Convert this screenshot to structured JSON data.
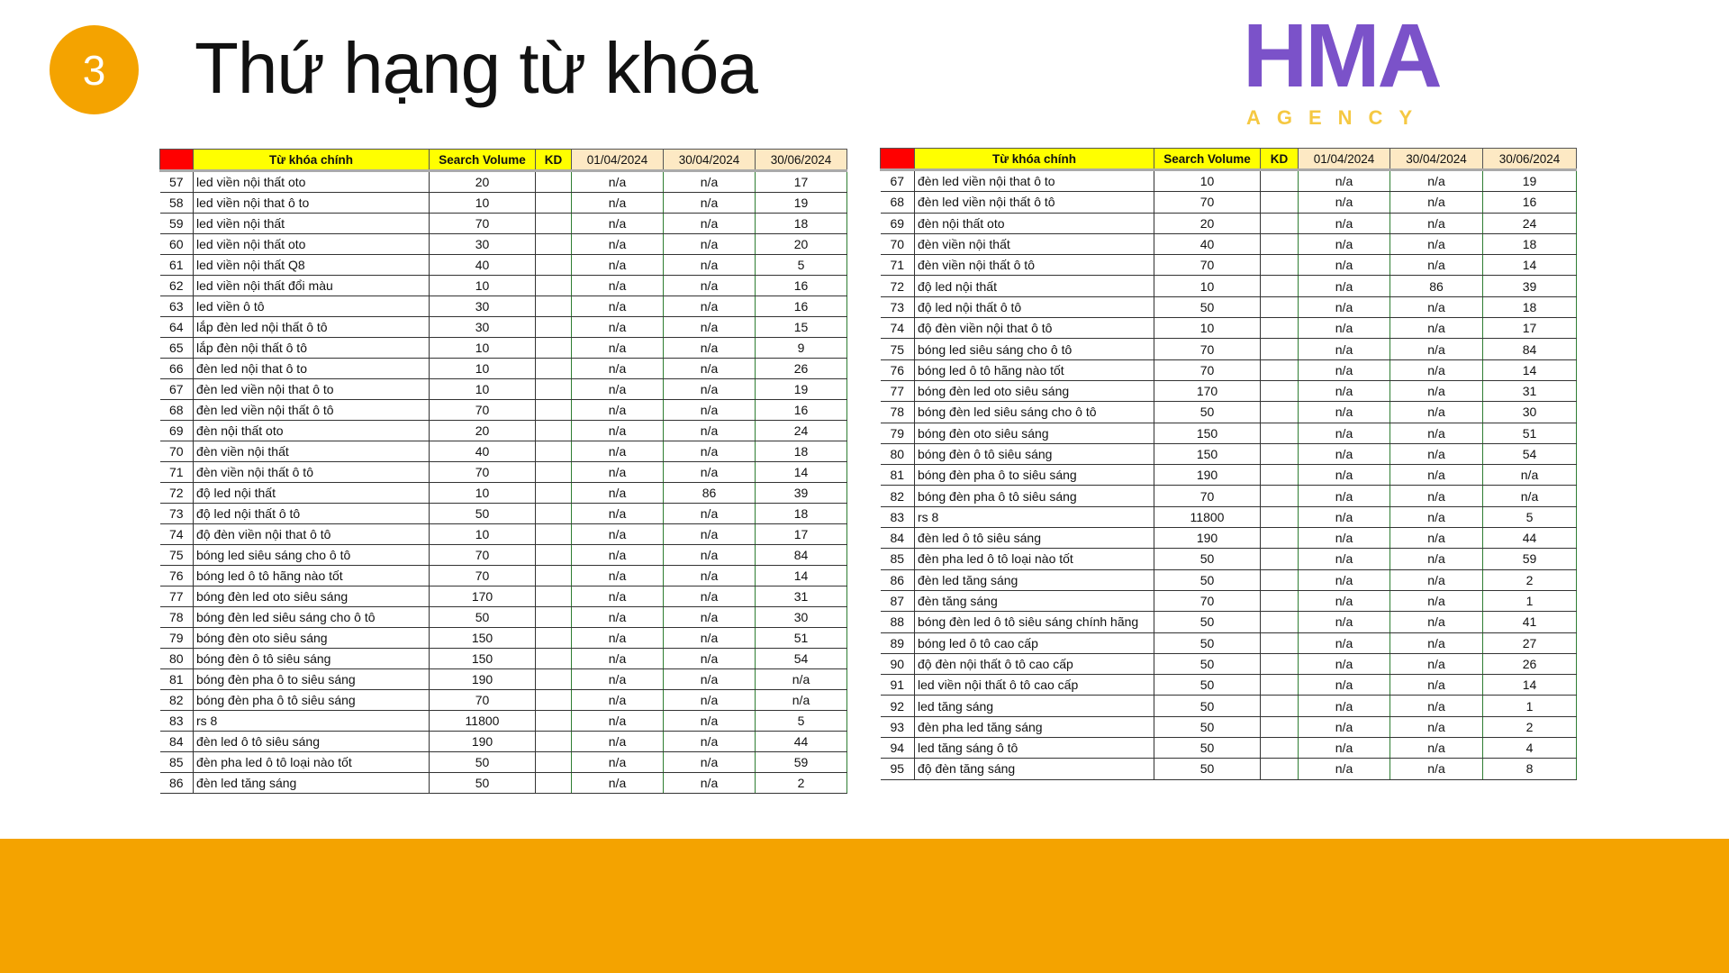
{
  "slide": {
    "number": "3",
    "title": "Thứ hạng từ khóa"
  },
  "watermark": {
    "text": "HMA",
    "subtext": "AGENCY"
  },
  "colors": {
    "accent": "#F4A300",
    "header_red": "#ff0000",
    "header_yellow": "#ffff00",
    "watermark": "#7b52c9"
  },
  "columns": [
    "",
    "Từ khóa chính",
    "Search Volume",
    "KD",
    "01/04/2024",
    "30/04/2024",
    "30/06/2024"
  ],
  "left_table": [
    [
      "57",
      "led viền nội thất oto",
      "20",
      "",
      "n/a",
      "n/a",
      "17"
    ],
    [
      "58",
      "led viền nội that ô to",
      "10",
      "",
      "n/a",
      "n/a",
      "19"
    ],
    [
      "59",
      "led viền nội thất",
      "70",
      "",
      "n/a",
      "n/a",
      "18"
    ],
    [
      "60",
      "led viền nội thất oto",
      "30",
      "",
      "n/a",
      "n/a",
      "20"
    ],
    [
      "61",
      "led viền nội thất Q8",
      "40",
      "",
      "n/a",
      "n/a",
      "5"
    ],
    [
      "62",
      "led viền nội thất đổi màu",
      "10",
      "",
      "n/a",
      "n/a",
      "16"
    ],
    [
      "63",
      "led viền ô tô",
      "30",
      "",
      "n/a",
      "n/a",
      "16"
    ],
    [
      "64",
      "lắp đèn led nội thất ô tô",
      "30",
      "",
      "n/a",
      "n/a",
      "15"
    ],
    [
      "65",
      "lắp đèn nội thất ô tô",
      "10",
      "",
      "n/a",
      "n/a",
      "9"
    ],
    [
      "66",
      "đèn led nội that ô to",
      "10",
      "",
      "n/a",
      "n/a",
      "26"
    ],
    [
      "67",
      "đèn led viền nội that ô to",
      "10",
      "",
      "n/a",
      "n/a",
      "19"
    ],
    [
      "68",
      "đèn led viền nội thất ô tô",
      "70",
      "",
      "n/a",
      "n/a",
      "16"
    ],
    [
      "69",
      "đèn nội thất oto",
      "20",
      "",
      "n/a",
      "n/a",
      "24"
    ],
    [
      "70",
      "đèn viền nội thất",
      "40",
      "",
      "n/a",
      "n/a",
      "18"
    ],
    [
      "71",
      "đèn viền nội thất ô tô",
      "70",
      "",
      "n/a",
      "n/a",
      "14"
    ],
    [
      "72",
      "độ led nội thất",
      "10",
      "",
      "n/a",
      "86",
      "39"
    ],
    [
      "73",
      "độ led nội thất ô tô",
      "50",
      "",
      "n/a",
      "n/a",
      "18"
    ],
    [
      "74",
      "độ đèn viền nội that ô tô",
      "10",
      "",
      "n/a",
      "n/a",
      "17"
    ],
    [
      "75",
      "bóng led siêu sáng cho ô tô",
      "70",
      "",
      "n/a",
      "n/a",
      "84"
    ],
    [
      "76",
      "bóng led ô tô hãng nào tốt",
      "70",
      "",
      "n/a",
      "n/a",
      "14"
    ],
    [
      "77",
      "bóng đèn led oto siêu sáng",
      "170",
      "",
      "n/a",
      "n/a",
      "31"
    ],
    [
      "78",
      "bóng đèn led siêu sáng cho ô tô",
      "50",
      "",
      "n/a",
      "n/a",
      "30"
    ],
    [
      "79",
      "bóng đèn oto siêu sáng",
      "150",
      "",
      "n/a",
      "n/a",
      "51"
    ],
    [
      "80",
      "bóng đèn ô tô siêu sáng",
      "150",
      "",
      "n/a",
      "n/a",
      "54"
    ],
    [
      "81",
      "bóng đèn pha ô to siêu sáng",
      "190",
      "",
      "n/a",
      "n/a",
      "n/a"
    ],
    [
      "82",
      "bóng đèn pha ô tô siêu sáng",
      "70",
      "",
      "n/a",
      "n/a",
      "n/a"
    ],
    [
      "83",
      "rs 8",
      "11800",
      "",
      "n/a",
      "n/a",
      "5"
    ],
    [
      "84",
      "đèn led ô tô siêu sáng",
      "190",
      "",
      "n/a",
      "n/a",
      "44"
    ],
    [
      "85",
      "đèn pha led ô tô loại nào tốt",
      "50",
      "",
      "n/a",
      "n/a",
      "59"
    ],
    [
      "86",
      "đèn led tăng sáng",
      "50",
      "",
      "n/a",
      "n/a",
      "2"
    ]
  ],
  "right_table": [
    [
      "67",
      "đèn led viền nội that ô to",
      "10",
      "",
      "n/a",
      "n/a",
      "19"
    ],
    [
      "68",
      "đèn led viền nội thất ô tô",
      "70",
      "",
      "n/a",
      "n/a",
      "16"
    ],
    [
      "69",
      "đèn nội thất oto",
      "20",
      "",
      "n/a",
      "n/a",
      "24"
    ],
    [
      "70",
      "đèn viền nội thất",
      "40",
      "",
      "n/a",
      "n/a",
      "18"
    ],
    [
      "71",
      "đèn viền nội thất ô tô",
      "70",
      "",
      "n/a",
      "n/a",
      "14"
    ],
    [
      "72",
      "độ led nội thất",
      "10",
      "",
      "n/a",
      "86",
      "39"
    ],
    [
      "73",
      "độ led nội thất ô tô",
      "50",
      "",
      "n/a",
      "n/a",
      "18"
    ],
    [
      "74",
      "độ đèn viền nội that ô tô",
      "10",
      "",
      "n/a",
      "n/a",
      "17"
    ],
    [
      "75",
      "bóng led siêu sáng cho ô tô",
      "70",
      "",
      "n/a",
      "n/a",
      "84"
    ],
    [
      "76",
      "bóng led ô tô hãng nào tốt",
      "70",
      "",
      "n/a",
      "n/a",
      "14"
    ],
    [
      "77",
      "bóng đèn led oto siêu sáng",
      "170",
      "",
      "n/a",
      "n/a",
      "31"
    ],
    [
      "78",
      "bóng đèn led siêu sáng cho ô tô",
      "50",
      "",
      "n/a",
      "n/a",
      "30"
    ],
    [
      "79",
      "bóng đèn oto siêu sáng",
      "150",
      "",
      "n/a",
      "n/a",
      "51"
    ],
    [
      "80",
      "bóng đèn ô tô siêu sáng",
      "150",
      "",
      "n/a",
      "n/a",
      "54"
    ],
    [
      "81",
      "bóng đèn pha ô to siêu sáng",
      "190",
      "",
      "n/a",
      "n/a",
      "n/a"
    ],
    [
      "82",
      "bóng đèn pha ô tô siêu sáng",
      "70",
      "",
      "n/a",
      "n/a",
      "n/a"
    ],
    [
      "83",
      "rs 8",
      "11800",
      "",
      "n/a",
      "n/a",
      "5"
    ],
    [
      "84",
      "đèn led ô tô siêu sáng",
      "190",
      "",
      "n/a",
      "n/a",
      "44"
    ],
    [
      "85",
      "đèn pha led ô tô loại nào tốt",
      "50",
      "",
      "n/a",
      "n/a",
      "59"
    ],
    [
      "86",
      "đèn led tăng sáng",
      "50",
      "",
      "n/a",
      "n/a",
      "2"
    ],
    [
      "87",
      "đèn tăng sáng",
      "70",
      "",
      "n/a",
      "n/a",
      "1"
    ],
    [
      "88",
      "bóng đèn led ô tô siêu sáng chính hãng",
      "50",
      "",
      "n/a",
      "n/a",
      "41"
    ],
    [
      "89",
      "bóng led ô tô cao cấp",
      "50",
      "",
      "n/a",
      "n/a",
      "27"
    ],
    [
      "90",
      "độ đèn nội thất ô tô cao cấp",
      "50",
      "",
      "n/a",
      "n/a",
      "26"
    ],
    [
      "91",
      "led viền nội thất ô tô cao cấp",
      "50",
      "",
      "n/a",
      "n/a",
      "14"
    ],
    [
      "92",
      "led tăng sáng",
      "50",
      "",
      "n/a",
      "n/a",
      "1"
    ],
    [
      "93",
      "đèn pha led tăng sáng",
      "50",
      "",
      "n/a",
      "n/a",
      "2"
    ],
    [
      "94",
      "led tăng sáng ô tô",
      "50",
      "",
      "n/a",
      "n/a",
      "4"
    ],
    [
      "95",
      "độ đèn tăng sáng",
      "50",
      "",
      "n/a",
      "n/a",
      "8"
    ]
  ]
}
